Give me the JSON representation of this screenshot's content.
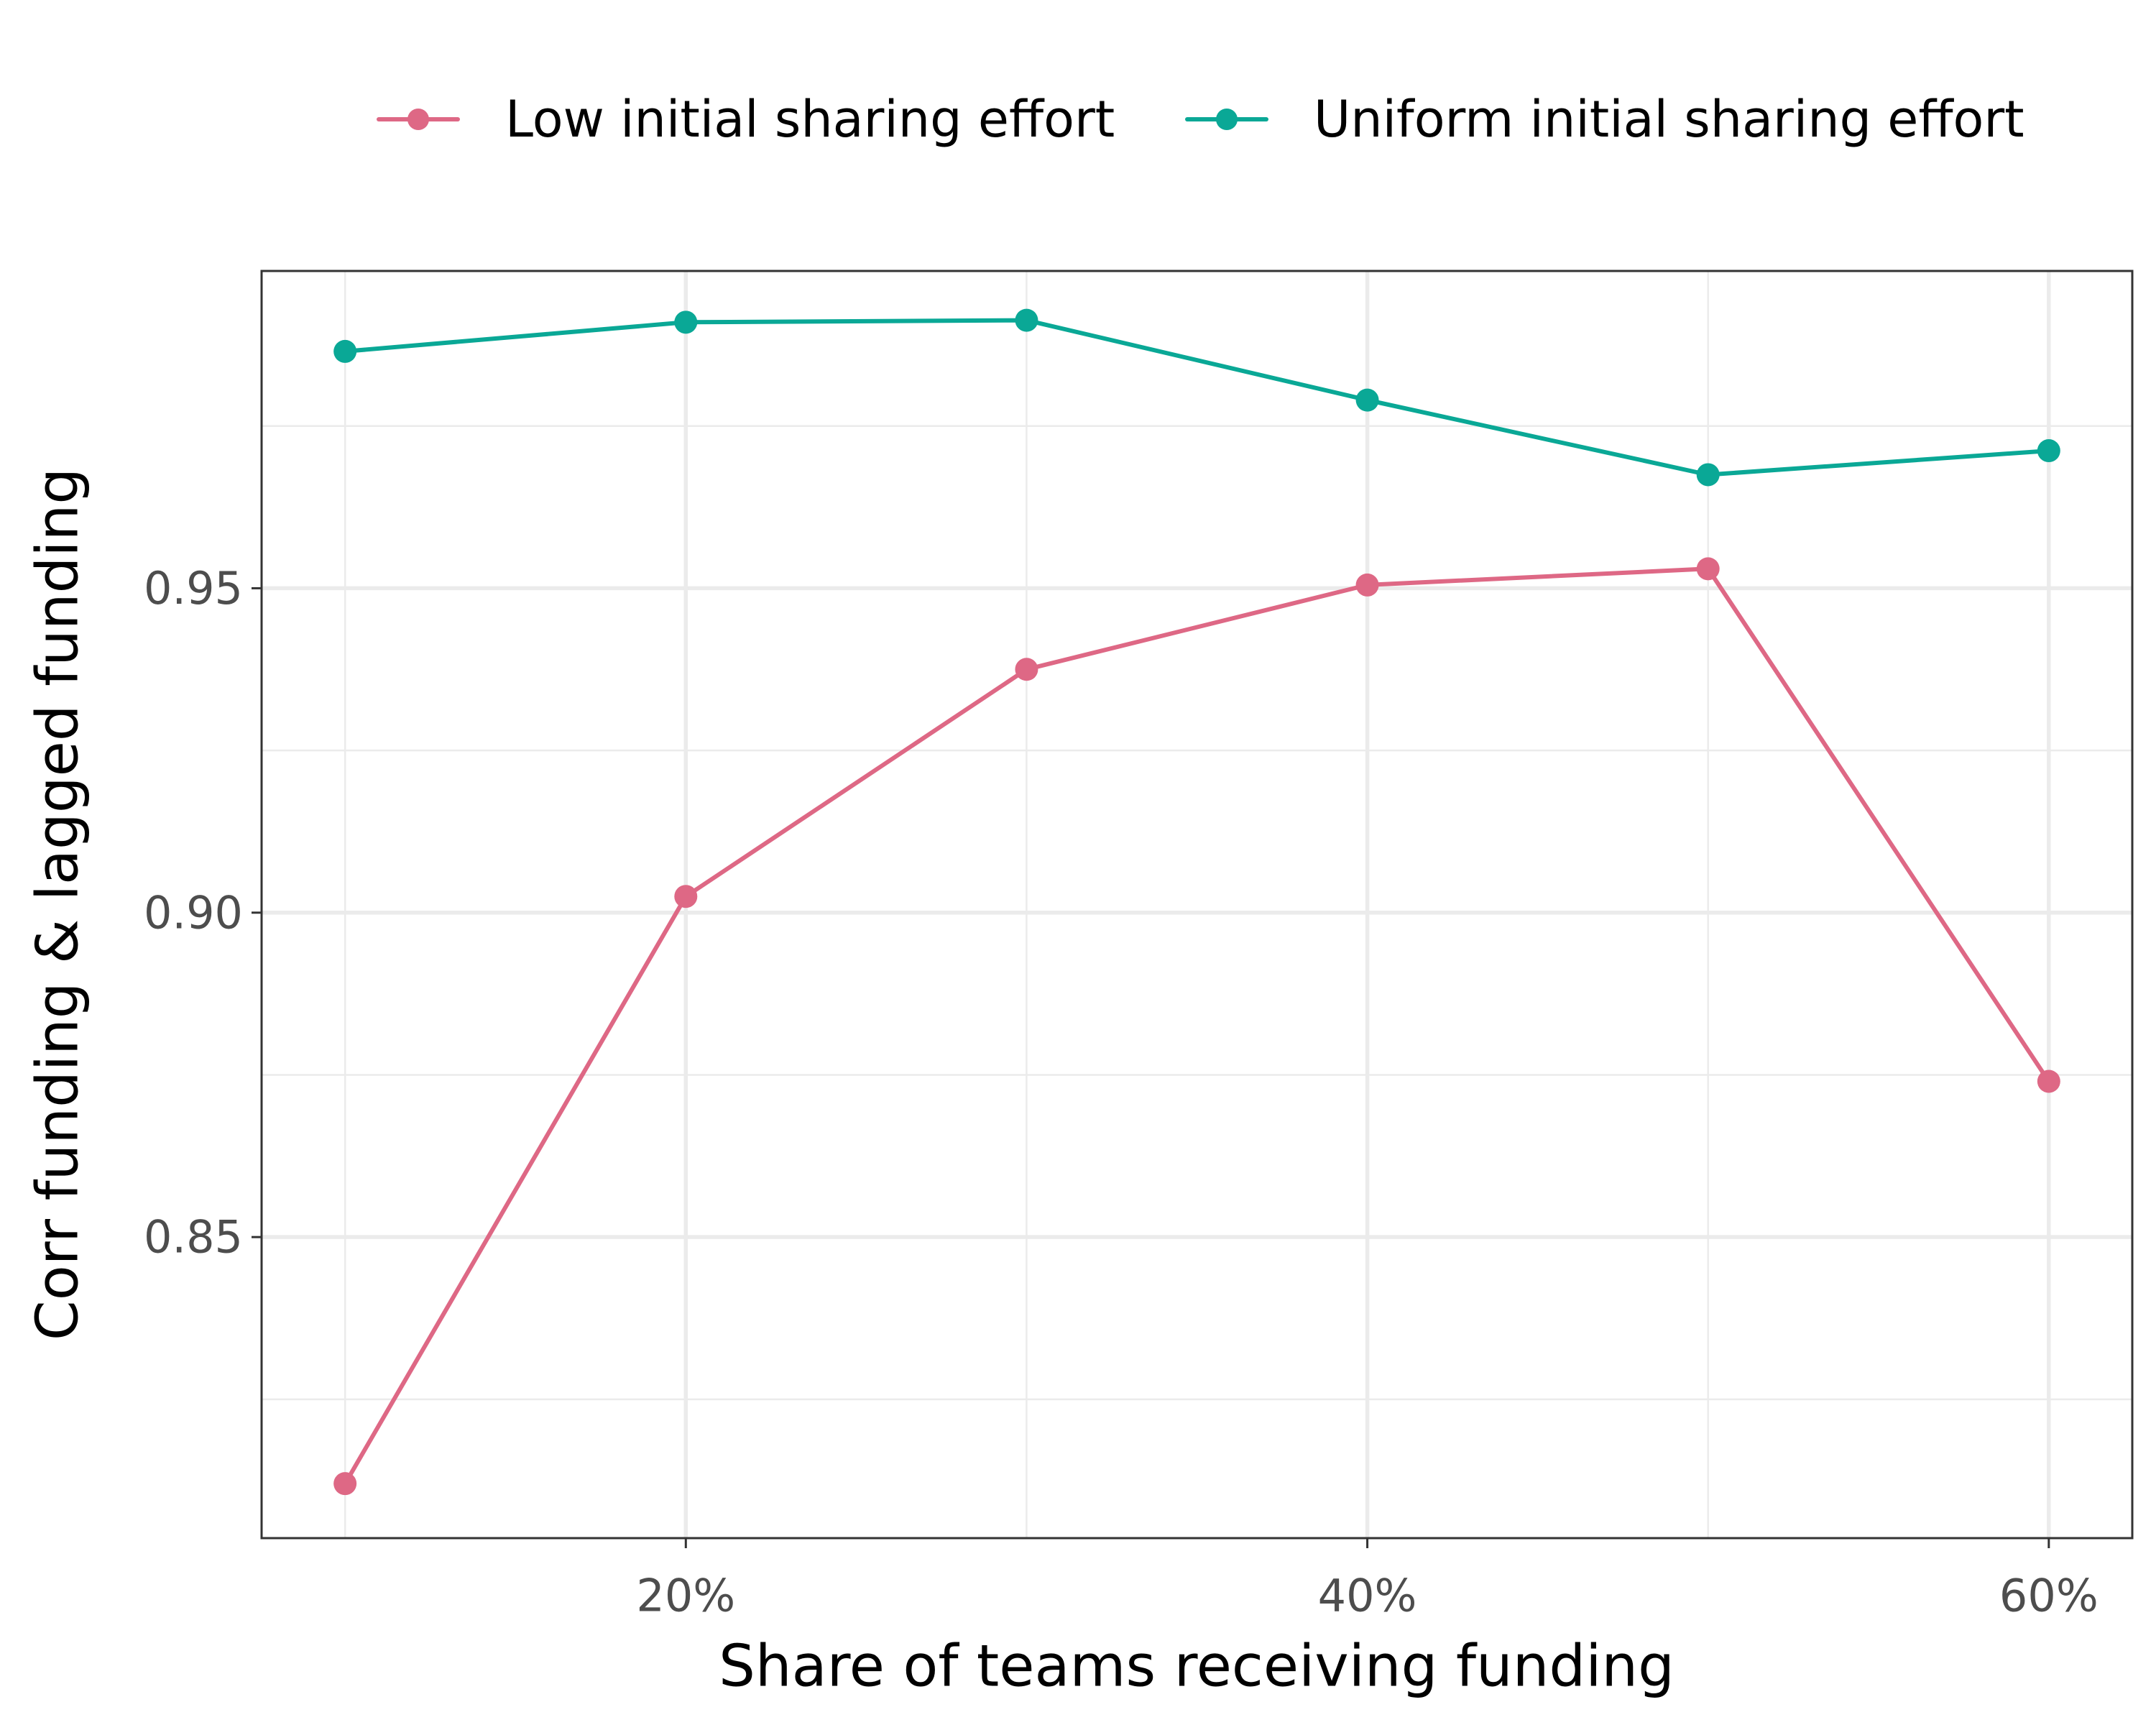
{
  "chart_data": {
    "type": "line",
    "x": [
      0.1,
      0.2,
      0.3,
      0.4,
      0.5,
      0.6
    ],
    "series": [
      {
        "name": "Low initial sharing effort",
        "color": "#de6885",
        "values": [
          0.812,
          0.9025,
          0.9375,
          0.9505,
          0.953,
          0.874
        ]
      },
      {
        "name": "Uniform initial sharing effort",
        "color": "#0aa896",
        "values": [
          0.9865,
          0.991,
          0.9913,
          0.979,
          0.9675,
          0.9712
        ]
      }
    ],
    "xlabel": "Share of teams receiving funding",
    "ylabel": "Corr funding & lagged funding",
    "xlim": [
      0.0755,
      0.6245
    ],
    "ylim": [
      0.8036,
      0.9989
    ],
    "xticks": [
      {
        "value": 0.2,
        "label": "20%"
      },
      {
        "value": 0.4,
        "label": "40%"
      },
      {
        "value": 0.6,
        "label": "60%"
      }
    ],
    "xminor": [
      0.1,
      0.3,
      0.5
    ],
    "yticks": [
      {
        "value": 0.85,
        "label": "0.85"
      },
      {
        "value": 0.9,
        "label": "0.90"
      },
      {
        "value": 0.95,
        "label": "0.95"
      }
    ],
    "yminor": [
      0.825,
      0.875,
      0.925,
      0.975
    ],
    "grid": true,
    "legend_position": "top"
  }
}
